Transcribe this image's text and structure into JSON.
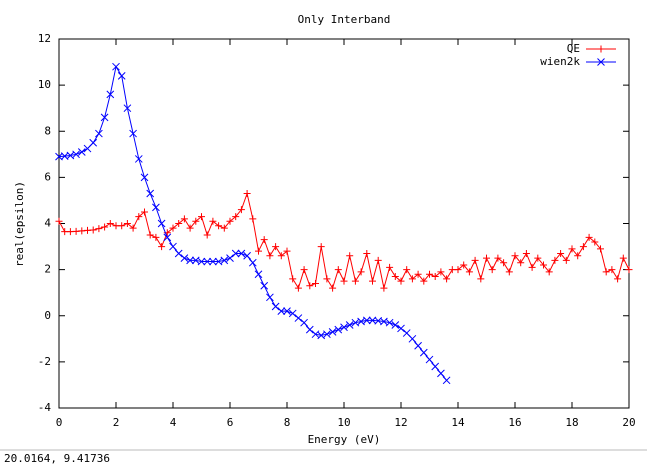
{
  "chart_data": {
    "type": "line",
    "title": "Only Interband",
    "x_label": "Energy (eV)",
    "y_label": "real(epsilon)",
    "xlim": [
      0,
      20
    ],
    "ylim": [
      -4,
      12
    ],
    "xticks": [
      0,
      2,
      4,
      6,
      8,
      10,
      12,
      14,
      16,
      18,
      20
    ],
    "yticks": [
      -4,
      -2,
      0,
      2,
      4,
      6,
      8,
      10,
      12
    ],
    "legend": "top right",
    "series": [
      {
        "name": "QE",
        "color": "#ff0000",
        "marker": "+",
        "x": [
          0,
          0.2,
          0.4,
          0.6,
          0.8,
          1.0,
          1.2,
          1.4,
          1.6,
          1.8,
          2.0,
          2.2,
          2.4,
          2.6,
          2.8,
          3.0,
          3.2,
          3.4,
          3.6,
          3.8,
          4.0,
          4.2,
          4.4,
          4.6,
          4.8,
          5.0,
          5.2,
          5.4,
          5.6,
          5.8,
          6.0,
          6.2,
          6.4,
          6.6,
          6.8,
          7.0,
          7.2,
          7.4,
          7.6,
          7.8,
          8.0,
          8.2,
          8.4,
          8.6,
          8.8,
          9.0,
          9.2,
          9.4,
          9.6,
          9.8,
          10.0,
          10.2,
          10.4,
          10.6,
          10.8,
          11.0,
          11.2,
          11.4,
          11.6,
          11.8,
          12.0,
          12.2,
          12.4,
          12.6,
          12.8,
          13.0,
          13.2,
          13.4,
          13.6,
          13.8,
          14.0,
          14.2,
          14.4,
          14.6,
          14.8,
          15.0,
          15.2,
          15.4,
          15.6,
          15.8,
          16.0,
          16.2,
          16.4,
          16.6,
          16.8,
          17.0,
          17.2,
          17.4,
          17.6,
          17.8,
          18.0,
          18.2,
          18.4,
          18.6,
          18.8,
          19.0,
          19.2,
          19.4,
          19.6,
          19.8,
          20.0
        ],
        "values": [
          4.1,
          3.65,
          3.65,
          3.66,
          3.68,
          3.7,
          3.72,
          3.78,
          3.85,
          4.0,
          3.9,
          3.9,
          4.0,
          3.8,
          4.3,
          4.5,
          3.5,
          3.4,
          3.0,
          3.6,
          3.8,
          4.0,
          4.2,
          3.8,
          4.1,
          4.3,
          3.5,
          4.1,
          3.9,
          3.8,
          4.1,
          4.3,
          4.6,
          5.3,
          4.2,
          2.8,
          3.3,
          2.6,
          3.0,
          2.6,
          2.8,
          1.6,
          1.2,
          2.0,
          1.3,
          1.4,
          3.0,
          1.6,
          1.2,
          2.0,
          1.5,
          2.6,
          1.5,
          1.9,
          2.7,
          1.5,
          2.4,
          1.2,
          2.1,
          1.7,
          1.5,
          2.0,
          1.6,
          1.8,
          1.5,
          1.8,
          1.7,
          1.9,
          1.6,
          2.0,
          2.0,
          2.2,
          1.9,
          2.4,
          1.6,
          2.5,
          2.0,
          2.5,
          2.3,
          1.9,
          2.6,
          2.3,
          2.7,
          2.1,
          2.5,
          2.2,
          1.9,
          2.4,
          2.7,
          2.4,
          2.9,
          2.6,
          3.0,
          3.4,
          3.2,
          2.9,
          1.9,
          2.0,
          1.6,
          2.5,
          2.0
        ]
      },
      {
        "name": "wien2k",
        "color": "#0000ff",
        "marker": "x",
        "x": [
          0,
          0.2,
          0.4,
          0.6,
          0.8,
          1.0,
          1.2,
          1.4,
          1.6,
          1.8,
          2.0,
          2.2,
          2.4,
          2.6,
          2.8,
          3.0,
          3.2,
          3.4,
          3.6,
          3.8,
          4.0,
          4.2,
          4.4,
          4.6,
          4.8,
          5.0,
          5.2,
          5.4,
          5.6,
          5.8,
          6.0,
          6.2,
          6.4,
          6.6,
          6.8,
          7.0,
          7.2,
          7.4,
          7.6,
          7.8,
          8.0,
          8.2,
          8.4,
          8.6,
          8.8,
          9.0,
          9.2,
          9.4,
          9.6,
          9.8,
          10.0,
          10.2,
          10.4,
          10.6,
          10.8,
          11.0,
          11.2,
          11.4,
          11.6,
          11.8,
          12.0,
          12.2,
          12.4,
          12.6,
          12.8,
          13.0,
          13.2,
          13.4,
          13.6
        ],
        "values": [
          6.9,
          6.92,
          6.95,
          7.0,
          7.1,
          7.25,
          7.5,
          7.9,
          8.6,
          9.6,
          10.8,
          10.4,
          9.0,
          7.9,
          6.8,
          6.0,
          5.3,
          4.7,
          4.0,
          3.4,
          3.0,
          2.7,
          2.5,
          2.4,
          2.4,
          2.35,
          2.35,
          2.35,
          2.35,
          2.4,
          2.5,
          2.7,
          2.7,
          2.6,
          2.3,
          1.8,
          1.3,
          0.8,
          0.4,
          0.2,
          0.2,
          0.1,
          -0.1,
          -0.3,
          -0.6,
          -0.8,
          -0.85,
          -0.8,
          -0.7,
          -0.6,
          -0.5,
          -0.4,
          -0.3,
          -0.25,
          -0.2,
          -0.2,
          -0.22,
          -0.25,
          -0.3,
          -0.4,
          -0.55,
          -0.75,
          -1.0,
          -1.3,
          -1.6,
          -1.9,
          -2.2,
          -2.5,
          -2.8
        ]
      }
    ]
  },
  "status": "20.0164,  9.41736"
}
